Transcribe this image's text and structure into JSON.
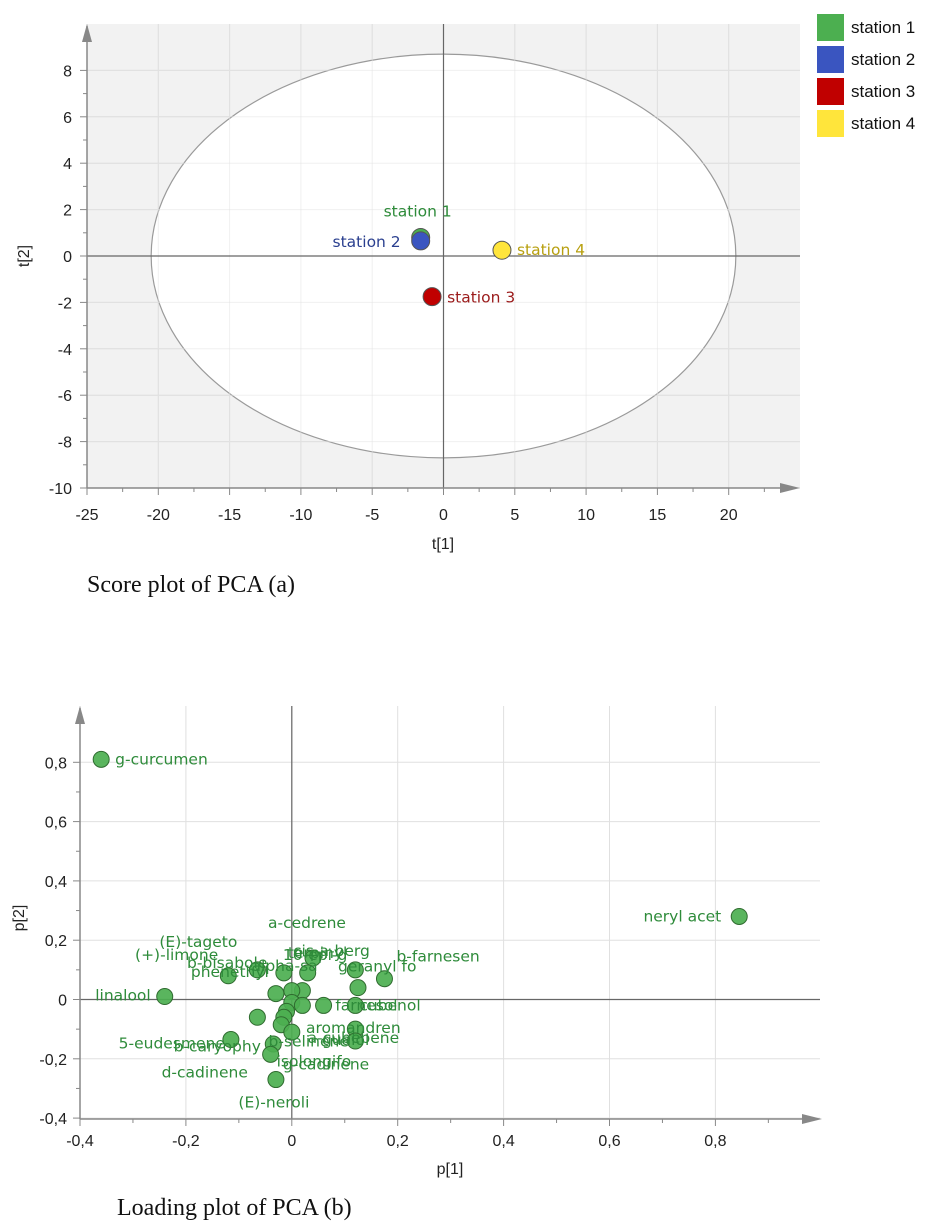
{
  "chart_data": [
    {
      "type": "scatter",
      "caption": "Score plot of PCA (a)",
      "xlabel": "t[1]",
      "ylabel": "t[2]",
      "xlim": [
        -25,
        25
      ],
      "ylim": [
        -10,
        10
      ],
      "xticks": [
        -25,
        -20,
        -15,
        -10,
        -5,
        0,
        5,
        10,
        15,
        20
      ],
      "yticks": [
        8,
        6,
        4,
        2,
        0,
        -2,
        -4,
        -6,
        -8,
        -10
      ],
      "ellipse": {
        "cx": 0,
        "cy": 0,
        "rx": 20.5,
        "ry": 8.7
      },
      "grid": true,
      "legend_position": "top-right",
      "points": [
        {
          "name": "station 1",
          "x": -1.6,
          "y": 0.8,
          "color": "#4caf50",
          "label_color": "#2e8b3a"
        },
        {
          "name": "station 2",
          "x": -1.6,
          "y": 0.65,
          "color": "#3a55c0",
          "label_color": "#2a3f8f"
        },
        {
          "name": "station 3",
          "x": -0.8,
          "y": -1.75,
          "color": "#c00000",
          "label_color": "#9b1b1b"
        },
        {
          "name": "station 4",
          "x": 4.1,
          "y": 0.25,
          "color": "#ffe53b",
          "label_color": "#b8a010"
        }
      ],
      "legend": [
        {
          "name": "station 1",
          "color": "#4caf50"
        },
        {
          "name": "station 2",
          "color": "#3a55c0"
        },
        {
          "name": "station 3",
          "color": "#c00000"
        },
        {
          "name": "station 4",
          "color": "#ffe53b"
        }
      ]
    },
    {
      "type": "scatter",
      "caption": "Loading plot of PCA (b)",
      "xlabel": "p[1]",
      "ylabel": "p[2]",
      "xlim": [
        -0.4,
        1.0
      ],
      "ylim": [
        -0.4,
        0.95
      ],
      "xticks": [
        "-0,4",
        "-0,2",
        "0",
        "0,2",
        "0,4",
        "0,6",
        "0,8"
      ],
      "xtick_values": [
        -0.4,
        -0.2,
        0,
        0.2,
        0.4,
        0.6,
        0.8
      ],
      "yticks": [
        "0,8",
        "0,6",
        "0,4",
        "0,2",
        "0",
        "-0,2",
        "-0,4"
      ],
      "ytick_values": [
        0.8,
        0.6,
        0.4,
        0.2,
        0,
        -0.2,
        -0.4
      ],
      "grid": true,
      "point_color": "#4caf50",
      "label_color": "#2e8b3a",
      "points": [
        {
          "x": -0.36,
          "y": 0.81,
          "label": "g-curcumen",
          "side": "right"
        },
        {
          "x": 0.845,
          "y": 0.28,
          "label": "neryl acet",
          "side": "left"
        },
        {
          "x": -0.24,
          "y": 0.01,
          "label": "linalool",
          "side": "left"
        },
        {
          "x": -0.12,
          "y": 0.08,
          "label": "(+)-limone",
          "side": "left"
        },
        {
          "x": -0.065,
          "y": 0.1,
          "label": "(E)-tageto",
          "side": "left"
        },
        {
          "x": -0.065,
          "y": 0.1,
          "label": "b-bisabole",
          "side": "left"
        },
        {
          "x": -0.015,
          "y": 0.09,
          "label": "phenethyl",
          "side": "left"
        },
        {
          "x": 0.04,
          "y": 0.14,
          "label": "a-cedrene",
          "side": "left"
        },
        {
          "x": 0.04,
          "y": 0.14,
          "label": "cis-a-berg",
          "side": "none"
        },
        {
          "x": 0.03,
          "y": 0.09,
          "label": "alpha-sa",
          "side": "none"
        },
        {
          "x": 0.175,
          "y": 0.07,
          "label": "b-farnesen",
          "side": "right"
        },
        {
          "x": 0.175,
          "y": 0.07,
          "label": "geranyl fo",
          "side": "left"
        },
        {
          "x": 0.12,
          "y": 0.1,
          "label": "10-epi-g",
          "side": "none"
        },
        {
          "x": 0.12,
          "y": 0.1,
          "label": "terpinyl",
          "side": "none"
        },
        {
          "x": 0.125,
          "y": 0.04,
          "label": "",
          "side": "none"
        },
        {
          "x": 0.02,
          "y": 0.03,
          "label": "",
          "side": "none"
        },
        {
          "x": 0.0,
          "y": 0.03,
          "label": "",
          "side": "none"
        },
        {
          "x": -0.03,
          "y": 0.02,
          "label": "",
          "side": "none"
        },
        {
          "x": 0.0,
          "y": -0.01,
          "label": "",
          "side": "none"
        },
        {
          "x": 0.02,
          "y": -0.02,
          "label": "",
          "side": "none"
        },
        {
          "x": -0.01,
          "y": -0.04,
          "label": "",
          "side": "none"
        },
        {
          "x": -0.065,
          "y": -0.06,
          "label": "",
          "side": "none"
        },
        {
          "x": -0.015,
          "y": -0.06,
          "label": "",
          "side": "none"
        },
        {
          "x": 0.06,
          "y": -0.02,
          "label": "",
          "side": "none"
        },
        {
          "x": -0.02,
          "y": -0.085,
          "label": "",
          "side": "none"
        },
        {
          "x": 0.0,
          "y": -0.11,
          "label": "",
          "side": "none"
        },
        {
          "x": -0.115,
          "y": -0.135,
          "label": "b-selinene",
          "side": "none"
        },
        {
          "x": -0.115,
          "y": -0.135,
          "label": "b-caryophy",
          "side": "none"
        },
        {
          "x": -0.115,
          "y": -0.135,
          "label": "5-eudesmene",
          "side": "none"
        },
        {
          "x": -0.035,
          "y": -0.15,
          "label": "guaiol",
          "side": "none"
        },
        {
          "x": -0.04,
          "y": -0.185,
          "label": "isolongifo",
          "side": "none"
        },
        {
          "x": -0.03,
          "y": -0.27,
          "label": "d-cadinene",
          "side": "left"
        },
        {
          "x": -0.03,
          "y": -0.27,
          "label": "g-cadinene",
          "side": "none"
        },
        {
          "x": -0.03,
          "y": -0.27,
          "label": "(E)-neroli",
          "side": "none"
        },
        {
          "x": 0.12,
          "y": -0.1,
          "label": "aromandren",
          "side": "none"
        },
        {
          "x": 0.12,
          "y": -0.14,
          "label": "a-cubebene",
          "side": "none"
        },
        {
          "x": 0.12,
          "y": -0.02,
          "label": "farnesol",
          "side": "none"
        },
        {
          "x": 0.12,
          "y": -0.02,
          "label": "cubenol",
          "side": "none"
        }
      ]
    }
  ]
}
